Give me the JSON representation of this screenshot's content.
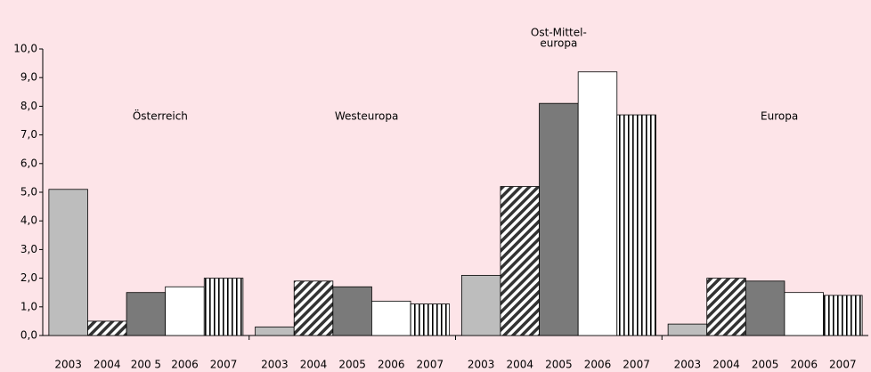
{
  "chart_data": {
    "type": "bar",
    "categories": [
      [
        "Österreich"
      ],
      [
        "Westeuropa"
      ],
      [
        "Ost-Mittel-",
        "europa"
      ],
      [
        "Europa"
      ]
    ],
    "bar_labels": [
      [
        "2003",
        "2004",
        "200 5",
        "2006",
        "2007"
      ],
      [
        "2003",
        "2004",
        "2005",
        "2006",
        "2007"
      ],
      [
        "2003",
        "2004",
        "2005",
        "2006",
        "2007"
      ],
      [
        "2003",
        "2004",
        "2005",
        "2006",
        "2007"
      ]
    ],
    "series": [
      {
        "color": "#bdbdbd",
        "values": [
          5.1,
          0.3,
          2.1,
          0.4
        ]
      },
      {
        "color": "hatch",
        "values": [
          0.5,
          1.9,
          5.2,
          2.0
        ]
      },
      {
        "color": "#7a7a7a",
        "values": [
          1.5,
          1.7,
          8.1,
          1.9
        ]
      },
      {
        "color": "#ffffff",
        "values": [
          1.7,
          1.2,
          9.2,
          1.5
        ]
      },
      {
        "color": "vstripes",
        "values": [
          2.0,
          1.1,
          7.7,
          1.4
        ]
      }
    ],
    "ylim": [
      0,
      10
    ],
    "yticks": [
      {
        "value": 0,
        "label": "0,0"
      },
      {
        "value": 1,
        "label": "1,0"
      },
      {
        "value": 2,
        "label": "2,0"
      },
      {
        "value": 3,
        "label": "3,0"
      },
      {
        "value": 4,
        "label": "4,0"
      },
      {
        "value": 5,
        "label": "5,0"
      },
      {
        "value": 6,
        "label": "6,0"
      },
      {
        "value": 7,
        "label": "7,0"
      },
      {
        "value": 8,
        "label": "8,0"
      },
      {
        "value": 9,
        "label": "9,0"
      },
      {
        "value": 10,
        "label": "10,0"
      }
    ]
  }
}
